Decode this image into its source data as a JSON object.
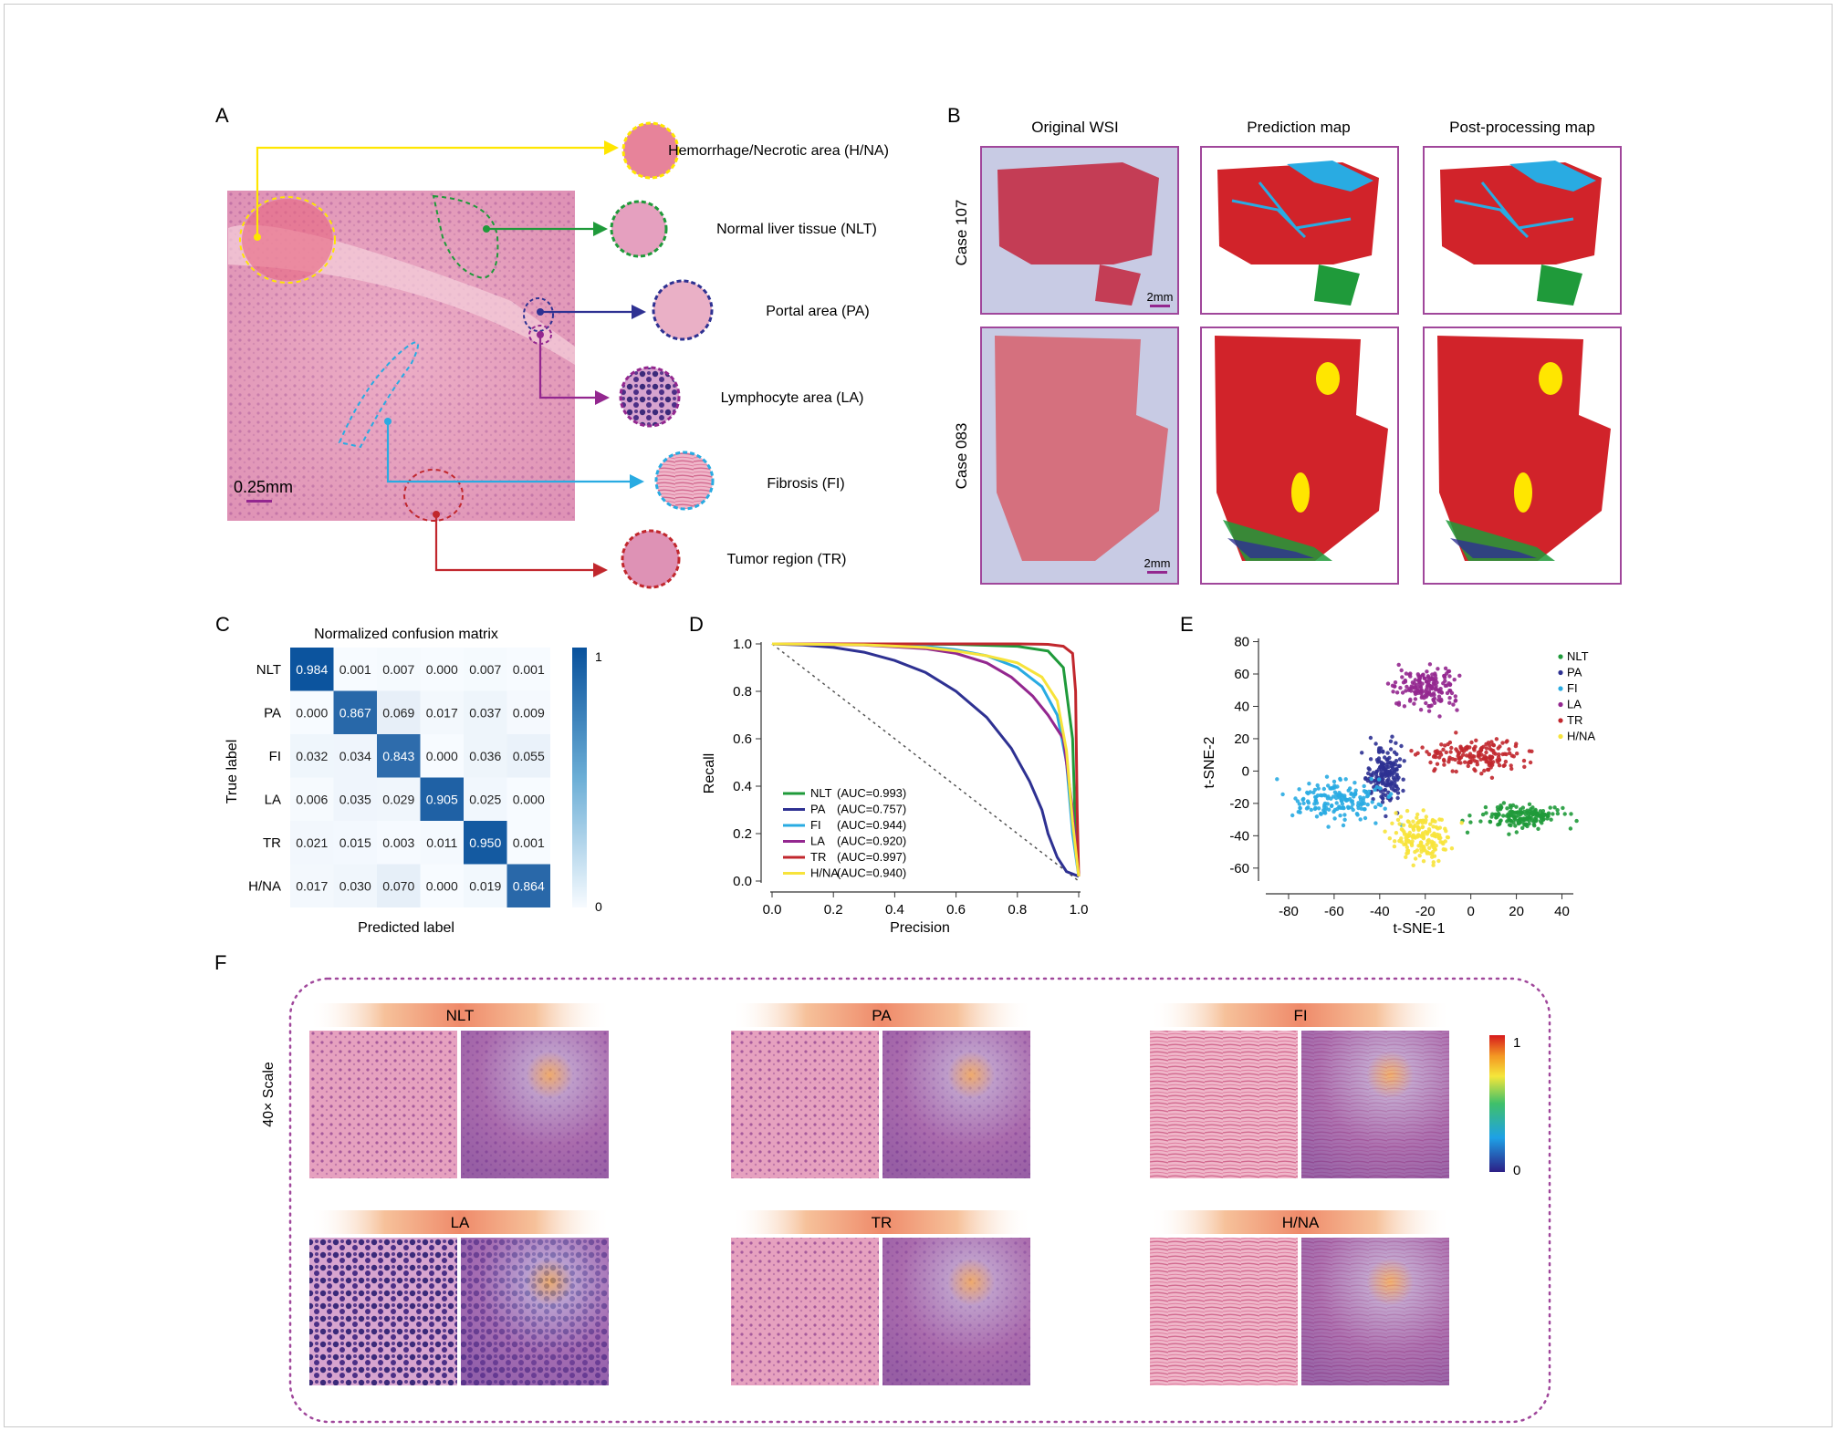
{
  "panels": {
    "a": "A",
    "b": "B",
    "c": "C",
    "d": "D",
    "e": "E",
    "f": "F"
  },
  "colors": {
    "NLT": "#1f9a3a",
    "PA": "#2e3192",
    "FI": "#29abe2",
    "LA": "#93278f",
    "TR": "#c1272d",
    "HNA": "#ffe600",
    "frame_purple": "#a0479b",
    "he_pink": "#e8a7c2",
    "lymph": "#5a3b8c"
  },
  "panel_a": {
    "scale": "0.25mm",
    "tissue_labels": [
      {
        "key": "HNA",
        "text": "Hemorrhage/Necrotic area (H/NA)"
      },
      {
        "key": "NLT",
        "text": "Normal liver tissue (NLT)"
      },
      {
        "key": "PA",
        "text": "Portal area (PA)"
      },
      {
        "key": "LA",
        "text": "Lymphocyte area (LA)"
      },
      {
        "key": "FI",
        "text": "Fibrosis (FI)"
      },
      {
        "key": "TR",
        "text": "Tumor region (TR)"
      }
    ]
  },
  "panel_b": {
    "col_titles": [
      "Original WSI",
      "Prediction map",
      "Post-processing map"
    ],
    "rows": [
      "Case 107",
      "Case 083"
    ],
    "scale": "2mm"
  },
  "panel_c": {
    "title": "Normalized confusion matrix",
    "ylabel": "True label",
    "xlabel": "Predicted label",
    "labels": [
      "NLT",
      "PA",
      "FI",
      "LA",
      "TR",
      "H/NA"
    ],
    "matrix": [
      [
        "0.984",
        "0.001",
        "0.007",
        "0.000",
        "0.007",
        "0.001"
      ],
      [
        "0.000",
        "0.867",
        "0.069",
        "0.017",
        "0.037",
        "0.009"
      ],
      [
        "0.032",
        "0.034",
        "0.843",
        "0.000",
        "0.036",
        "0.055"
      ],
      [
        "0.006",
        "0.035",
        "0.029",
        "0.905",
        "0.025",
        "0.000"
      ],
      [
        "0.021",
        "0.015",
        "0.003",
        "0.011",
        "0.950",
        "0.001"
      ],
      [
        "0.017",
        "0.030",
        "0.070",
        "0.000",
        "0.019",
        "0.864"
      ]
    ],
    "colorbar": {
      "max": "1",
      "min": "0"
    }
  },
  "chart_data": [
    {
      "type": "heatmap",
      "title": "Normalized confusion matrix",
      "xlabel": "Predicted label",
      "ylabel": "True label",
      "categories": [
        "NLT",
        "PA",
        "FI",
        "LA",
        "TR",
        "H/NA"
      ],
      "values": [
        [
          0.984,
          0.001,
          0.007,
          0.0,
          0.007,
          0.001
        ],
        [
          0.0,
          0.867,
          0.069,
          0.017,
          0.037,
          0.009
        ],
        [
          0.032,
          0.034,
          0.843,
          0.0,
          0.036,
          0.055
        ],
        [
          0.006,
          0.035,
          0.029,
          0.905,
          0.025,
          0.0
        ],
        [
          0.021,
          0.015,
          0.003,
          0.011,
          0.95,
          0.001
        ],
        [
          0.017,
          0.03,
          0.07,
          0.0,
          0.019,
          0.864
        ]
      ],
      "colorbar_range": [
        0,
        1
      ]
    },
    {
      "type": "line",
      "xlabel": "Precision",
      "ylabel": "Recall",
      "xlim": [
        0,
        1
      ],
      "ylim": [
        0,
        1
      ],
      "xticks": [
        "0.0",
        "0.2",
        "0.4",
        "0.6",
        "0.8",
        "1.0"
      ],
      "yticks": [
        "0.0",
        "0.2",
        "0.4",
        "0.6",
        "0.8",
        "1.0"
      ],
      "legend_position": "bottom-left",
      "series": [
        {
          "name": "NLT",
          "auc": "(AUC=0.993)",
          "color": "#1f9a3a",
          "points": [
            [
              0,
              1
            ],
            [
              0.3,
              1
            ],
            [
              0.6,
              0.998
            ],
            [
              0.8,
              0.99
            ],
            [
              0.9,
              0.97
            ],
            [
              0.95,
              0.9
            ],
            [
              0.98,
              0.6
            ],
            [
              0.99,
              0.2
            ],
            [
              1,
              0.02
            ]
          ]
        },
        {
          "name": "PA",
          "auc": "(AUC=0.757)",
          "color": "#2e3192",
          "points": [
            [
              0,
              1
            ],
            [
              0.1,
              0.995
            ],
            [
              0.2,
              0.985
            ],
            [
              0.3,
              0.965
            ],
            [
              0.4,
              0.93
            ],
            [
              0.5,
              0.88
            ],
            [
              0.6,
              0.8
            ],
            [
              0.7,
              0.69
            ],
            [
              0.78,
              0.56
            ],
            [
              0.84,
              0.42
            ],
            [
              0.88,
              0.3
            ],
            [
              0.9,
              0.2
            ],
            [
              0.93,
              0.1
            ],
            [
              0.96,
              0.04
            ],
            [
              1,
              0.02
            ]
          ]
        },
        {
          "name": "FI",
          "auc": "(AUC=0.944)",
          "color": "#29abe2",
          "points": [
            [
              0,
              1
            ],
            [
              0.3,
              0.998
            ],
            [
              0.5,
              0.99
            ],
            [
              0.6,
              0.975
            ],
            [
              0.7,
              0.95
            ],
            [
              0.8,
              0.9
            ],
            [
              0.88,
              0.82
            ],
            [
              0.93,
              0.7
            ],
            [
              0.96,
              0.5
            ],
            [
              0.98,
              0.2
            ],
            [
              1,
              0.02
            ]
          ]
        },
        {
          "name": "LA",
          "auc": "(AUC=0.920)",
          "color": "#93278f",
          "points": [
            [
              0,
              1
            ],
            [
              0.3,
              0.995
            ],
            [
              0.5,
              0.98
            ],
            [
              0.6,
              0.96
            ],
            [
              0.7,
              0.92
            ],
            [
              0.78,
              0.86
            ],
            [
              0.85,
              0.78
            ],
            [
              0.9,
              0.7
            ],
            [
              0.95,
              0.6
            ],
            [
              0.98,
              0.3
            ],
            [
              1,
              0.02
            ]
          ]
        },
        {
          "name": "TR",
          "auc": "(AUC=0.997)",
          "color": "#c1272d",
          "points": [
            [
              0,
              1
            ],
            [
              0.5,
              1
            ],
            [
              0.8,
              1
            ],
            [
              0.9,
              0.998
            ],
            [
              0.95,
              0.99
            ],
            [
              0.98,
              0.96
            ],
            [
              0.99,
              0.8
            ],
            [
              0.995,
              0.3
            ],
            [
              1,
              0.02
            ]
          ]
        },
        {
          "name": "H/NA",
          "auc": "(AUC=0.940)",
          "color": "#f7e33b",
          "points": [
            [
              0,
              1
            ],
            [
              0.3,
              0.996
            ],
            [
              0.5,
              0.985
            ],
            [
              0.6,
              0.97
            ],
            [
              0.7,
              0.95
            ],
            [
              0.8,
              0.92
            ],
            [
              0.88,
              0.86
            ],
            [
              0.93,
              0.76
            ],
            [
              0.96,
              0.55
            ],
            [
              0.98,
              0.25
            ],
            [
              1,
              0.02
            ]
          ]
        }
      ]
    },
    {
      "type": "scatter",
      "xlabel": "t-SNE-1",
      "ylabel": "t-SNE-2",
      "xlim": [
        -90,
        45
      ],
      "ylim": [
        -68,
        82
      ],
      "xticks": [
        "-80",
        "-60",
        "-40",
        "-20",
        "0",
        "20",
        "40"
      ],
      "yticks": [
        "80",
        "60",
        "40",
        "20",
        "0",
        "-20",
        "-40",
        "-60"
      ],
      "legend_position": "top-right",
      "series": [
        {
          "name": "NLT",
          "color": "#1f9a3a",
          "clusters": [
            {
              "cx": 22,
              "cy": -28,
              "sx": 9,
              "sy": 4
            }
          ]
        },
        {
          "name": "PA",
          "color": "#2e3192",
          "clusters": [
            {
              "cx": -38,
              "cy": -2,
              "sx": 4,
              "sy": 9
            }
          ]
        },
        {
          "name": "FI",
          "color": "#29abe2",
          "clusters": [
            {
              "cx": -58,
              "cy": -18,
              "sx": 10,
              "sy": 6
            }
          ]
        },
        {
          "name": "LA",
          "color": "#93278f",
          "clusters": [
            {
              "cx": -20,
              "cy": 52,
              "sx": 7,
              "sy": 6
            }
          ]
        },
        {
          "name": "TR",
          "color": "#c1272d",
          "clusters": [
            {
              "cx": 2,
              "cy": 10,
              "sx": 11,
              "sy": 5
            }
          ]
        },
        {
          "name": "H/NA",
          "color": "#f7e33b",
          "clusters": [
            {
              "cx": -22,
              "cy": -40,
              "sx": 6,
              "sy": 7
            }
          ]
        }
      ]
    }
  ],
  "panel_f": {
    "side_label": "40× Scale",
    "tiles": [
      "NLT",
      "PA",
      "FI",
      "LA",
      "TR",
      "H/NA"
    ],
    "colorbar": {
      "max": "1",
      "min": "0"
    }
  }
}
